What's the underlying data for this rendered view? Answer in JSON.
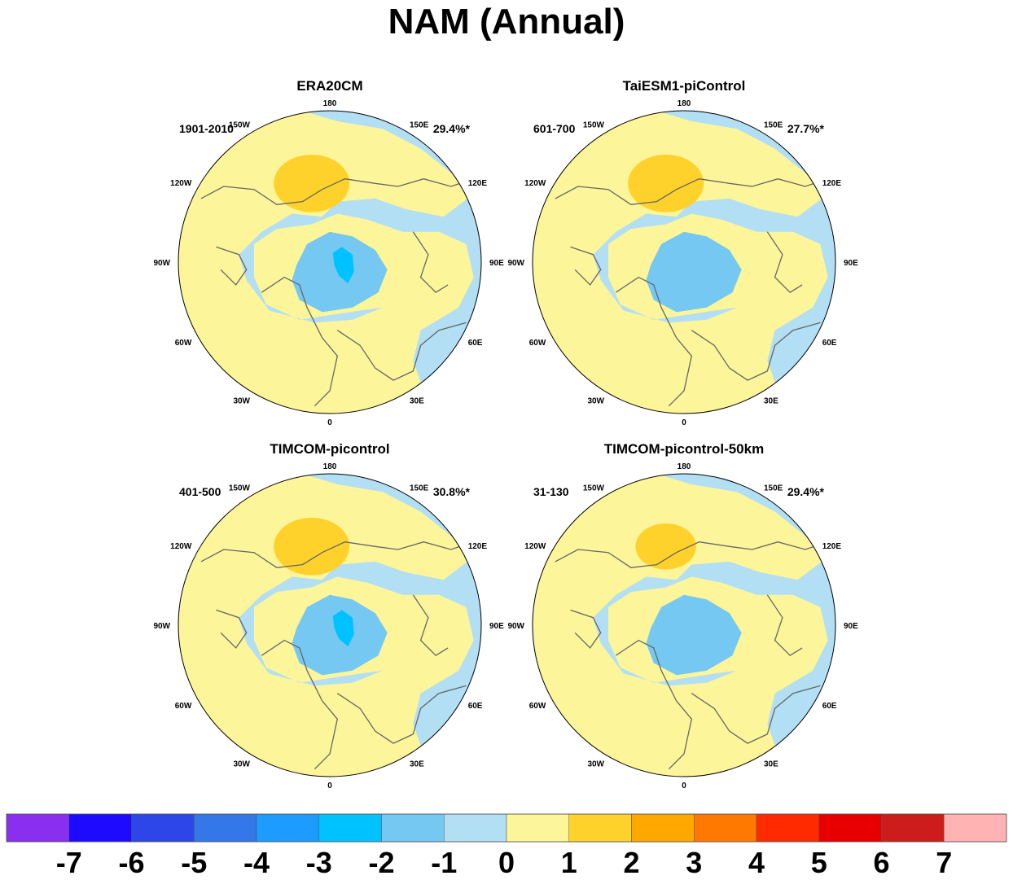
{
  "title": "NAM (Annual)",
  "lon_labels": [
    "180",
    "150E",
    "120E",
    "90E",
    "60E",
    "30E",
    "0",
    "30W",
    "60W",
    "90W",
    "120W",
    "150W"
  ],
  "panels": [
    {
      "name": "ERA20CM",
      "period": "1901-2010",
      "variance": "29.4%*"
    },
    {
      "name": "TaiESM1-piControl",
      "period": "601-700",
      "variance": "27.7%*"
    },
    {
      "name": "TIMCOM-picontrol",
      "period": "401-500",
      "variance": "30.8%*"
    },
    {
      "name": "TIMCOM-picontrol-50km",
      "period": "31-130",
      "variance": "29.4%*"
    }
  ],
  "colorbar": {
    "labels": [
      "-7",
      "-6",
      "-5",
      "-4",
      "-3",
      "-2",
      "-1",
      "0",
      "1",
      "2",
      "3",
      "4",
      "5",
      "6",
      "7"
    ],
    "colors": [
      "#8a2ff0",
      "#1e0bff",
      "#2d46e8",
      "#3377e8",
      "#1e9bff",
      "#00c2ff",
      "#74c8f2",
      "#b2dff4",
      "#fdf59a",
      "#fed22a",
      "#fea800",
      "#ff7800",
      "#ff2a00",
      "#e80000",
      "#cc1c1c",
      "#ffb3b3"
    ]
  },
  "colors": {
    "ocean_yellow": "#fdf59a",
    "light_blue": "#b2dff4",
    "mid_blue": "#74c8f2",
    "deep_blue": "#00c2ff",
    "orange_yellow": "#fed22a",
    "coast": "#666666"
  }
}
